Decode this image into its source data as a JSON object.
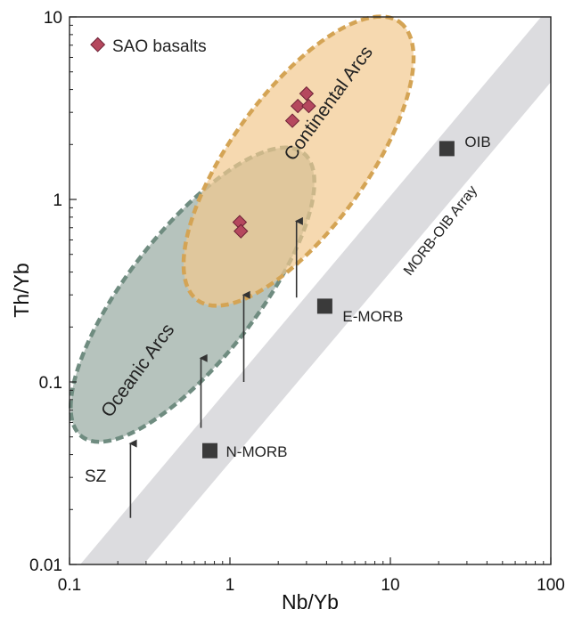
{
  "chart_data": {
    "type": "scatter",
    "xscale": "log",
    "yscale": "log",
    "xlim": [
      0.1,
      100
    ],
    "ylim": [
      0.01,
      10
    ],
    "xlabel": "Nb/Yb",
    "ylabel": "Th/Yb",
    "xticks": [
      {
        "value": 0.1,
        "label": "0.1"
      },
      {
        "value": 1,
        "label": "1"
      },
      {
        "value": 10,
        "label": "10"
      },
      {
        "value": 100,
        "label": "100"
      }
    ],
    "yticks": [
      {
        "value": 0.01,
        "label": "0.01"
      },
      {
        "value": 0.1,
        "label": "0.1"
      },
      {
        "value": 1,
        "label": "1"
      },
      {
        "value": 10,
        "label": "10"
      }
    ],
    "legend": {
      "position": "top-left",
      "entries": [
        {
          "label": "SAO basalts",
          "marker": "diamond",
          "color": "#b5485e"
        }
      ]
    },
    "series": [
      {
        "name": "SAO basalts",
        "marker": "diamond",
        "color": "#b5485e",
        "points": [
          {
            "x": 2.45,
            "y": 2.7
          },
          {
            "x": 2.65,
            "y": 3.25
          },
          {
            "x": 3.0,
            "y": 3.8
          },
          {
            "x": 3.1,
            "y": 3.25
          },
          {
            "x": 1.15,
            "y": 0.75
          },
          {
            "x": 1.17,
            "y": 0.67
          }
        ]
      }
    ],
    "reference_points": [
      {
        "label": "N-MORB",
        "x": 0.75,
        "y": 0.042
      },
      {
        "label": "E-MORB",
        "x": 3.9,
        "y": 0.26
      },
      {
        "label": "OIB",
        "x": 22.5,
        "y": 1.9
      }
    ],
    "fields": [
      {
        "label": "Oceanic Arcs",
        "color": "#a9b9b1",
        "border": "#6f8c80"
      },
      {
        "label": "Continental Arcs",
        "color": "#f2c98f",
        "border": "#d4a455"
      }
    ],
    "array_label": "MORB-OIB Array",
    "array_color": "#dcdcdf",
    "annotations": [
      {
        "label": "SZ"
      }
    ],
    "arrows": [
      {
        "x": 0.24,
        "y_from": 0.018,
        "y_to": 0.046
      },
      {
        "x": 0.66,
        "y_from": 0.056,
        "y_to": 0.135
      },
      {
        "x": 1.22,
        "y_from": 0.1,
        "y_to": 0.3
      },
      {
        "x": 2.6,
        "y_from": 0.29,
        "y_to": 0.76
      }
    ]
  }
}
